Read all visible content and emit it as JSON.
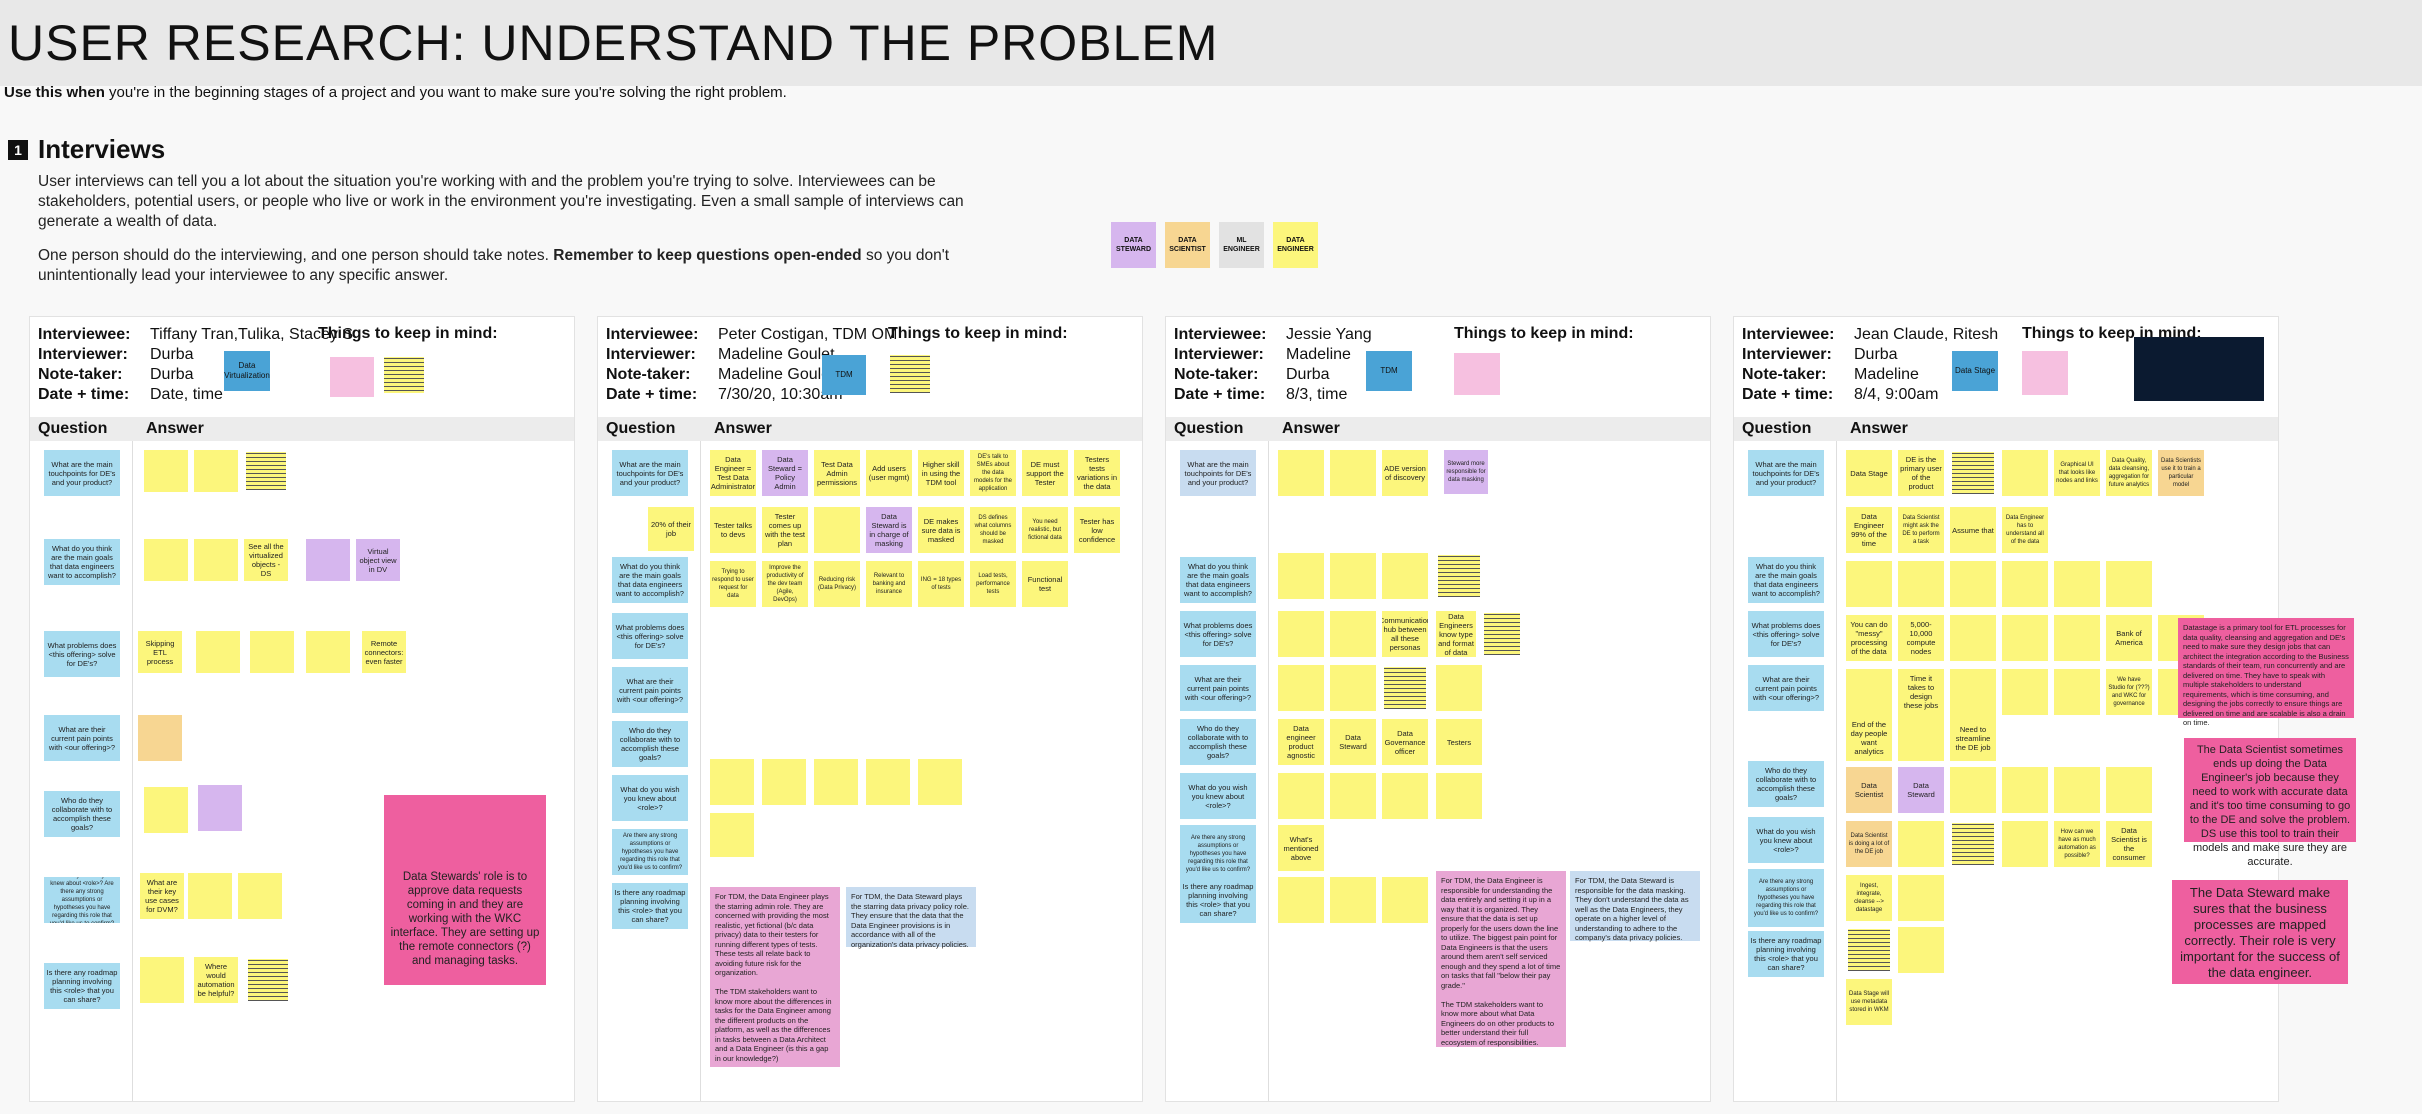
{
  "title": "USER RESEARCH: UNDERSTAND THE PROBLEM",
  "usethis": {
    "bold": "Use this when",
    "rest": " you're in the beginning stages of a project and you want to make sure you're solving the right problem."
  },
  "section": {
    "number": "1",
    "title": "Interviews",
    "p1": "User interviews can tell you a lot about the situation you're working with and the problem you're trying to solve. Interviewees can be stakeholders, potential users, or people who live or work in the environment you're investigating. Even a small sample of interviews can generate a wealth of data.",
    "p2a": "One person should do the interviewing, and one person should take notes. ",
    "p2b": "Remember to keep questions open-ended",
    "p2c": " so you don't unintentionally lead your interviewee to any specific answer."
  },
  "legend": [
    {
      "label": "DATA STEWARD",
      "color": "#d6b6ee"
    },
    {
      "label": "DATA SCIENTIST",
      "color": "#f7d692"
    },
    {
      "label": "ML ENGINEER",
      "color": "#e2e2e2"
    },
    {
      "label": "DATA ENGINEER",
      "color": "#fcf67c"
    }
  ],
  "labels": {
    "interviewee": "Interviewee:",
    "interviewer": "Interviewer:",
    "notetaker": "Note-taker:",
    "date": "Date + time:",
    "keep": "Things to keep in mind:",
    "question": "Question",
    "answer": "Answer"
  },
  "panels": [
    {
      "interviewee": "Tiffany Tran,Tulika, Stacey S",
      "interviewer": "Durba",
      "notetaker": "Durba",
      "date": "Date, time",
      "tag": "Data Virtualization"
    },
    {
      "interviewee": "Peter Costigan, TDM OM",
      "interviewer": "Madeline Goulet",
      "notetaker": "Madeline Goulet",
      "date": "7/30/20, 10:30am",
      "tag": "TDM"
    },
    {
      "interviewee": "Jessie Yang",
      "interviewer": "Madeline",
      "notetaker": "Durba",
      "date": "8/3, time",
      "tag": "TDM"
    },
    {
      "interviewee": "Jean Claude, Ritesh",
      "interviewer": "Durba",
      "notetaker": "Madeline",
      "date": "8/4, 9:00am",
      "tag": "Data Stage"
    }
  ],
  "questions": {
    "p1": [
      "What are the main touchpoints for DE's and your product?",
      "What do you think are the main goals that data engineers want to accomplish?",
      "What problems does <this offering> solve for DE's?",
      "What are their current pain points with <our offering>?",
      "Who do they collaborate with to accomplish these goals?",
      "What do you wish you knew about <role>? Are there any strong assumptions or hypotheses you have regarding this role that you'd like us to confirm?",
      "Is there any roadmap planning involving this <role> that you can share?"
    ],
    "p2": [
      "What are the main touchpoints for DE's and your product?",
      "What do you think are the main goals that data engineers want to accomplish?",
      "What problems does <this offering> solve for DE's?",
      "What are their current pain points with <our offering>?",
      "Who do they collaborate with to accomplish these goals?",
      "What do you wish you knew about <role>?",
      "Are there any strong assumptions or hypotheses you have regarding this role that you'd like us to confirm?",
      "Is there any roadmap planning involving this <role> that you can share?"
    ],
    "p3": [
      "What are the main touchpoints for DE's and your product?",
      "What do you think are the main goals that data engineers want to accomplish?",
      "What problems does <this offering> solve for DE's?",
      "What are their current pain points with <our offering>?",
      "Who do they collaborate with to accomplish these goals?",
      "What do you wish you knew about <role>?",
      "Are there any strong assumptions or hypotheses you have regarding this role that you'd like us to confirm?",
      "Is there any roadmap planning involving this <role> that you can share?"
    ],
    "p4": [
      "What are the main touchpoints for DE's and your product?",
      "What do you think are the main goals that data engineers want to accomplish?",
      "What problems does <this offering> solve for DE's?",
      "What are their current pain points with <our offering>?",
      "Who do they collaborate with to accomplish these goals?",
      "What do you wish you knew about <role>?",
      "Are there any strong assumptions or hypotheses you have regarding this role that you'd like us to confirm?",
      "Is there any roadmap planning involving this <role> that you can share?"
    ]
  },
  "p1notes": {
    "a1": "Skipping ETL process",
    "a2": "See all the virtualized objects - DS",
    "a3": "Virtual object view in DV",
    "a4": "Remote connectors: even faster",
    "a5": "What are their key use cases for DVM?",
    "a6": "Where would automation be helpful?",
    "big": "Data Stewards' role is to approve data requests coming in and they are working with the WKC interface. They are setting up the remote connectors (?) and managing tasks."
  },
  "p2notes": {
    "row1": [
      "Data Engineer = Test Data Administrator",
      "Data Steward = Policy Admin",
      "Test Data Admin permissions",
      "Add users (user mgmt)",
      "Higher skill in using the TDM tool",
      "DE's talk to SMEs about the data models for the application",
      "DE must support the Tester",
      "Testers tests variations in the data"
    ],
    "row2": [
      "20% of their job",
      "Tester talks to devs",
      "Tester comes up with the test plan",
      "Data Steward is in charge of masking",
      "DE makes sure data is masked",
      "DS defines what columns should be masked",
      "You need realistic, but fictional data",
      "Tester has low confidence"
    ],
    "row3": [
      "Trying to respond to user request for data",
      "Improve the productivity of the dev team (Agile, DevOps)",
      "Reducing risk (Data Privacy)",
      "Relevant to banking and insurance",
      "ING = 18 types of tests",
      "Load tests, performance tests",
      "Functional test"
    ],
    "big1": "For TDM, the Data Engineer plays the starring admin role. They are concerned with providing the most realistic, yet fictional (b/c data privacy) data to their testers for running different types of tests. These tests all relate back to avoiding future risk for the organization.\n\nThe TDM stakeholders want to know more about the differences in tasks for the Data Engineer among the different products on the platform, as well as the differences in tasks between a Data Architect and a Data Engineer (is this a gap in our knowledge?)",
    "big2": "For TDM, the Data Steward plays the starring data privacy policy role. They ensure that the data that the Data Engineer provisions is in accordance with all of the organization's data privacy policies."
  },
  "p3notes": {
    "ade": "ADE version of discovery",
    "steward": "Steward more responsible for data masking",
    "n1": "Communication hub between all these personas",
    "n2": "Data Engineers know type and format of data",
    "n3": "Data engineer product agnostic",
    "n4": "Data Steward",
    "n5": "Data Governance officer",
    "n6": "Testers",
    "n7": "What's mentioned above",
    "big1": "For TDM, the Data Engineer is responsible for understanding the data entirely and setting it up in a way that it is organized. They ensure that the data is set up properly for the users down the line to utilize. The biggest pain point for Data Engineers is that the users around them aren't self serviced enough and they spend a lot of time on tasks that fall \"below their pay grade.\"\n\nThe TDM stakeholders want to know more about what Data Engineers do on other products to better understand their full ecosystem of responsibilities.",
    "big2": "For TDM, the Data Steward is responsible for the data masking. They don't understand the data as well as the Data Engineers, they operate on a higher level of understanding to adhere to the company's data privacy policies."
  },
  "p4notes": {
    "row1": [
      "Data Stage",
      "DE is the primary user of the product",
      "",
      "Graphical UI that looks like nodes and links",
      "Data Quality, data cleansing, aggregation for future analytics",
      "Data Scientists use it to train a particular model"
    ],
    "row2": [
      "Data Engineer 99% of the time",
      "Data Scientist might ask the DE to perform a task",
      "Assume that",
      "Data Engineer has to understand all of the data"
    ],
    "n1": "You can do \"messy\" processing of the data",
    "n2": "5,000-10,000 compute nodes",
    "n3": "Bank of America",
    "n4": "Time it takes to design these jobs",
    "n5": "We have Studio for (???) and WKC for governance",
    "n6": "End of the day people want analytics",
    "n7": "Need to streamline the DE job",
    "n8": "Data Scientist",
    "n9": "Data Steward",
    "n10": "Data Scientist is doing a lot of the DE job",
    "n11": "How can we have as much automation as possible?",
    "n12": "Data Scientist is the consumer",
    "n13": "Ingest, integrate, cleanse --> datastage",
    "n14": "Data Stage will use metadata stored in WKM",
    "big1": "Datastage is a primary tool for ETL processes for data quality, cleansing and aggregation and DE's need to make sure they design jobs that can architect the integration according to the Business standards of their team, run concurrently and are delivered on time. They have to speak with multiple stakeholders to understand requirements, which is time consuming, and designing the jobs correctly to ensure things are delivered on time and are scalable is also a drain on time.",
    "big2": "The Data Scientist sometimes ends up doing the Data Engineer's job because they need to work with accurate data and  it's too time consuming to go to the DE and solve the problem. DS use this tool to train their models and make sure they are accurate.",
    "big3": "The Data Steward make sures that the business processes are mapped correctly. Their role is very important for the success of the data engineer."
  }
}
